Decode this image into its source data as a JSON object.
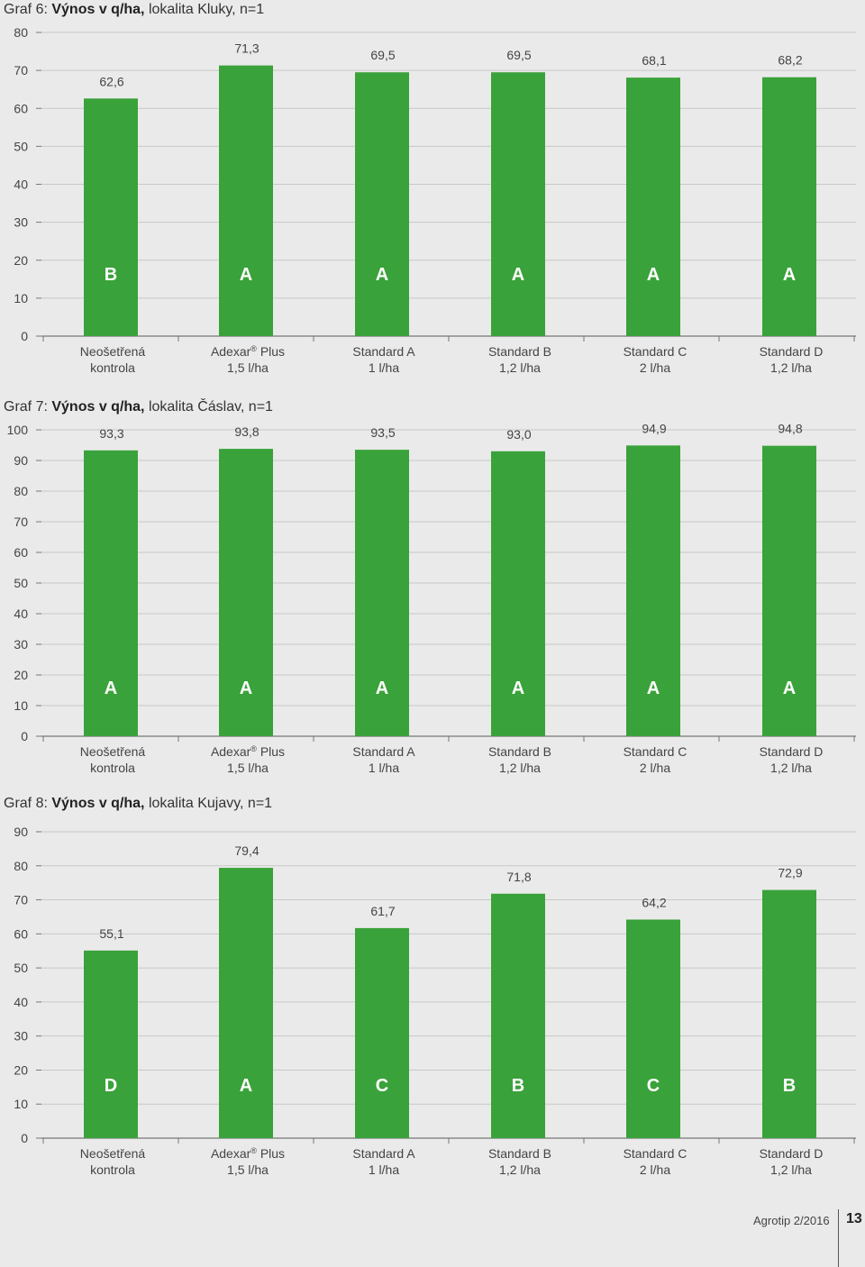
{
  "charts": [
    {
      "title_prefix": "Graf 6: ",
      "title_bold": "Výnos v q/ha,",
      "title_suffix": " lokalita Kluky, n=1"
    },
    {
      "title_prefix": "Graf 7: ",
      "title_bold": "Výnos v q/ha,",
      "title_suffix": " lokalita Čáslav, n=1"
    },
    {
      "title_prefix": "Graf 8: ",
      "title_bold": "Výnos v q/ha,",
      "title_suffix": " lokalita Kujavy, n=1"
    }
  ],
  "chart_data": [
    {
      "type": "bar",
      "title": "Graf 6: Výnos v q/ha, lokalita Kluky, n=1",
      "categories": [
        {
          "line1": "Neošetřená",
          "reg": "",
          "line1b": "",
          "line2": "kontrola"
        },
        {
          "line1": "Adexar",
          "reg": "®",
          "line1b": " Plus",
          "line2": "1,5 l/ha"
        },
        {
          "line1": "Standard A",
          "reg": "",
          "line1b": "",
          "line2": "1 l/ha"
        },
        {
          "line1": "Standard B",
          "reg": "",
          "line1b": "",
          "line2": "1,2 l/ha"
        },
        {
          "line1": "Standard C",
          "reg": "",
          "line1b": "",
          "line2": "2 l/ha"
        },
        {
          "line1": "Standard D",
          "reg": "",
          "line1b": "",
          "line2": "1,2 l/ha"
        }
      ],
      "values": [
        62.6,
        71.3,
        69.5,
        69.5,
        68.1,
        68.2
      ],
      "value_labels": [
        "62,6",
        "71,3",
        "69,5",
        "69,5",
        "68,1",
        "68,2"
      ],
      "group_letters": [
        "B",
        "A",
        "A",
        "A",
        "A",
        "A"
      ],
      "ylim": [
        0,
        80
      ],
      "yticks": [
        0,
        10,
        20,
        30,
        40,
        50,
        60,
        70,
        80
      ],
      "bar_color": "#3aa23a",
      "grid": true
    },
    {
      "type": "bar",
      "title": "Graf 7: Výnos v q/ha, lokalita Čáslav, n=1",
      "categories": [
        {
          "line1": "Neošetřená",
          "reg": "",
          "line1b": "",
          "line2": "kontrola"
        },
        {
          "line1": "Adexar",
          "reg": "®",
          "line1b": " Plus",
          "line2": "1,5 l/ha"
        },
        {
          "line1": "Standard A",
          "reg": "",
          "line1b": "",
          "line2": "1 l/ha"
        },
        {
          "line1": "Standard B",
          "reg": "",
          "line1b": "",
          "line2": "1,2 l/ha"
        },
        {
          "line1": "Standard C",
          "reg": "",
          "line1b": "",
          "line2": "2 l/ha"
        },
        {
          "line1": "Standard D",
          "reg": "",
          "line1b": "",
          "line2": "1,2 l/ha"
        }
      ],
      "values": [
        93.3,
        93.8,
        93.5,
        93.0,
        94.9,
        94.8
      ],
      "value_labels": [
        "93,3",
        "93,8",
        "93,5",
        "93,0",
        "94,9",
        "94,8"
      ],
      "group_letters": [
        "A",
        "A",
        "A",
        "A",
        "A",
        "A"
      ],
      "ylim": [
        0,
        100
      ],
      "yticks": [
        0,
        10,
        20,
        30,
        40,
        50,
        60,
        70,
        80,
        90,
        100
      ],
      "bar_color": "#3aa23a",
      "grid": true
    },
    {
      "type": "bar",
      "title": "Graf 8: Výnos v q/ha, lokalita Kujavy, n=1",
      "categories": [
        {
          "line1": "Neošetřená",
          "reg": "",
          "line1b": "",
          "line2": "kontrola"
        },
        {
          "line1": "Adexar",
          "reg": "®",
          "line1b": " Plus",
          "line2": "1,5 l/ha"
        },
        {
          "line1": "Standard A",
          "reg": "",
          "line1b": "",
          "line2": "1 l/ha"
        },
        {
          "line1": "Standard B",
          "reg": "",
          "line1b": "",
          "line2": "1,2 l/ha"
        },
        {
          "line1": "Standard C",
          "reg": "",
          "line1b": "",
          "line2": "2 l/ha"
        },
        {
          "line1": "Standard D",
          "reg": "",
          "line1b": "",
          "line2": "1,2 l/ha"
        }
      ],
      "values": [
        55.1,
        79.4,
        61.7,
        71.8,
        64.2,
        72.9
      ],
      "value_labels": [
        "55,1",
        "79,4",
        "61,7",
        "71,8",
        "64,2",
        "72,9"
      ],
      "group_letters": [
        "D",
        "A",
        "C",
        "B",
        "C",
        "B"
      ],
      "ylim": [
        0,
        90
      ],
      "yticks": [
        0,
        10,
        20,
        30,
        40,
        50,
        60,
        70,
        80,
        90
      ],
      "bar_color": "#3aa23a",
      "grid": true
    }
  ],
  "footer": {
    "publication": "Agrotip 2/2016",
    "page_number": "13"
  }
}
